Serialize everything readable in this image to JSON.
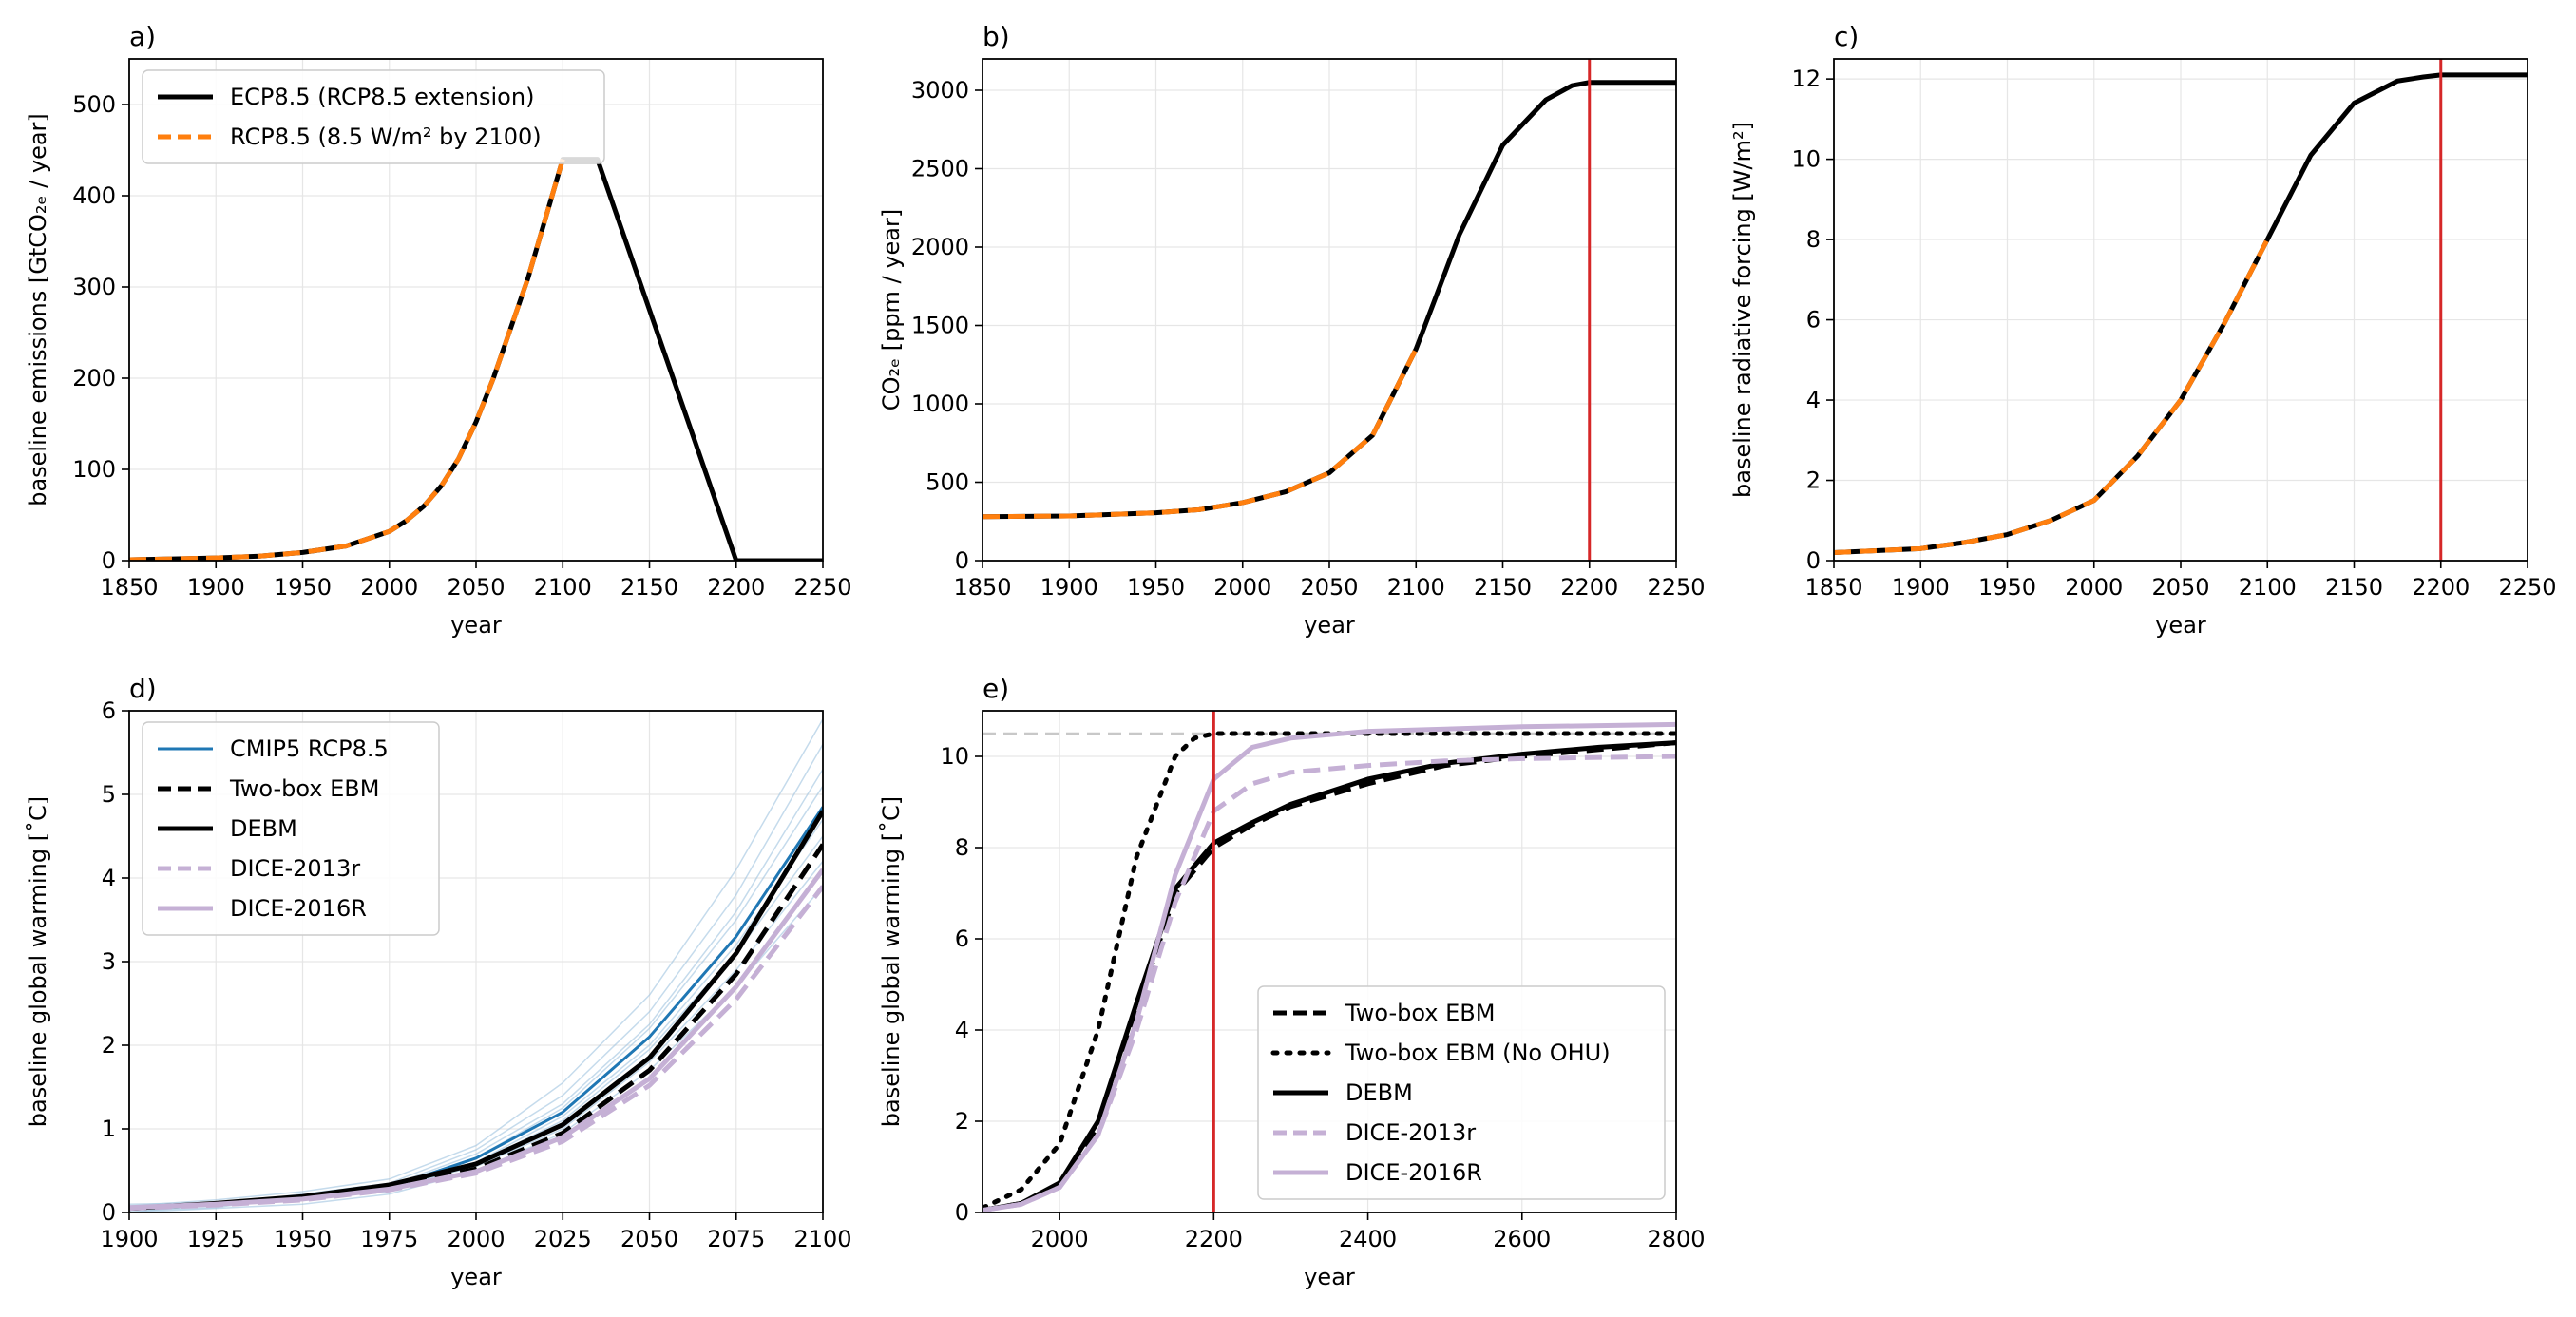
{
  "colors": {
    "black": "#000000",
    "orange": "#ff7f0e",
    "blue": "#1f77b4",
    "light_blue": "#9ec3df",
    "lilac": "#c5b0d5",
    "red": "#d62728",
    "gray": "#c8c8c8"
  },
  "chart_data": [
    {
      "id": "a",
      "type": "line",
      "title": "a)",
      "xlabel": "year",
      "ylabel": "baseline emissions [GtCO₂ₑ / year]",
      "xlim": [
        1850,
        2250
      ],
      "ylim": [
        0,
        550
      ],
      "xticks": [
        1850,
        1900,
        1950,
        2000,
        2050,
        2100,
        2150,
        2200,
        2250
      ],
      "yticks": [
        0,
        100,
        200,
        300,
        400,
        500
      ],
      "grid": true,
      "legend": "upper-left",
      "series": [
        {
          "name": "ECP8.5 (RCP8.5 extension)",
          "style": "solid",
          "color": "#000000",
          "width": 5,
          "x": [
            1850,
            1875,
            1900,
            1925,
            1950,
            1975,
            2000,
            2010,
            2020,
            2030,
            2040,
            2050,
            2060,
            2070,
            2080,
            2090,
            2100,
            2120,
            2200,
            2250
          ],
          "y": [
            1,
            2,
            3,
            5,
            9,
            16,
            32,
            44,
            60,
            82,
            112,
            152,
            200,
            255,
            310,
            375,
            440,
            440,
            0,
            0
          ]
        },
        {
          "name": "RCP8.5 (8.5 W/m² by 2100)",
          "style": "dashed",
          "color": "#ff7f0e",
          "width": 5,
          "x": [
            1850,
            1875,
            1900,
            1925,
            1950,
            1975,
            2000,
            2010,
            2020,
            2030,
            2040,
            2050,
            2060,
            2070,
            2080,
            2090,
            2100
          ],
          "y": [
            1,
            2,
            3,
            5,
            9,
            16,
            32,
            44,
            60,
            82,
            112,
            152,
            200,
            255,
            310,
            375,
            440
          ]
        }
      ]
    },
    {
      "id": "b",
      "type": "line",
      "title": "b)",
      "xlabel": "year",
      "ylabel": "CO₂ₑ [ppm / year]",
      "xlim": [
        1850,
        2250
      ],
      "ylim": [
        0,
        3200
      ],
      "xticks": [
        1850,
        1900,
        1950,
        2000,
        2050,
        2100,
        2150,
        2200,
        2250
      ],
      "yticks": [
        0,
        500,
        1000,
        1500,
        2000,
        2500,
        3000
      ],
      "grid": true,
      "vline": {
        "x": 2200,
        "color": "#d62728"
      },
      "series": [
        {
          "name": "ECP8.5",
          "style": "solid",
          "color": "#000000",
          "width": 5,
          "x": [
            1850,
            1900,
            1950,
            1975,
            2000,
            2025,
            2050,
            2075,
            2100,
            2110,
            2125,
            2150,
            2175,
            2190,
            2200,
            2250
          ],
          "y": [
            280,
            285,
            305,
            325,
            370,
            440,
            560,
            800,
            1350,
            1640,
            2080,
            2650,
            2940,
            3030,
            3050,
            3050
          ]
        },
        {
          "name": "RCP8.5",
          "style": "dashed",
          "color": "#ff7f0e",
          "width": 5,
          "x": [
            1850,
            1900,
            1950,
            1975,
            2000,
            2025,
            2050,
            2075,
            2100
          ],
          "y": [
            280,
            285,
            305,
            325,
            370,
            440,
            560,
            800,
            1350
          ]
        }
      ]
    },
    {
      "id": "c",
      "type": "line",
      "title": "c)",
      "xlabel": "year",
      "ylabel": "baseline radiative forcing [W/m²]",
      "xlim": [
        1850,
        2250
      ],
      "ylim": [
        0,
        12.5
      ],
      "xticks": [
        1850,
        1900,
        1950,
        2000,
        2050,
        2100,
        2150,
        2200,
        2250
      ],
      "yticks": [
        0,
        2,
        4,
        6,
        8,
        10,
        12
      ],
      "grid": true,
      "vline": {
        "x": 2200,
        "color": "#d62728"
      },
      "series": [
        {
          "name": "ECP8.5",
          "style": "solid",
          "color": "#000000",
          "width": 5,
          "x": [
            1850,
            1900,
            1925,
            1950,
            1975,
            2000,
            2025,
            2050,
            2075,
            2100,
            2125,
            2150,
            2175,
            2190,
            2200,
            2250
          ],
          "y": [
            0.2,
            0.3,
            0.45,
            0.65,
            1.0,
            1.5,
            2.6,
            4.0,
            5.9,
            8.0,
            10.1,
            11.4,
            11.95,
            12.05,
            12.1,
            12.1
          ]
        },
        {
          "name": "RCP8.5",
          "style": "dashed",
          "color": "#ff7f0e",
          "width": 5,
          "x": [
            1850,
            1900,
            1925,
            1950,
            1975,
            2000,
            2025,
            2050,
            2075,
            2100
          ],
          "y": [
            0.2,
            0.3,
            0.45,
            0.65,
            1.0,
            1.5,
            2.6,
            4.0,
            5.9,
            8.0
          ]
        }
      ]
    },
    {
      "id": "d",
      "type": "line",
      "title": "d)",
      "xlabel": "year",
      "ylabel": "baseline global warming [˚C]",
      "xlim": [
        1900,
        2100
      ],
      "ylim": [
        0,
        6
      ],
      "xticks": [
        1900,
        1925,
        1950,
        1975,
        2000,
        2025,
        2050,
        2075,
        2100
      ],
      "yticks": [
        0,
        1,
        2,
        3,
        4,
        5,
        6
      ],
      "grid": true,
      "legend": "upper-left",
      "ensemble": {
        "color": "#9ec3df",
        "x": [
          1900,
          1925,
          1950,
          1975,
          2000,
          2025,
          2050,
          2075,
          2100
        ],
        "members": [
          [
            0.05,
            0.08,
            0.18,
            0.28,
            0.6,
            1.15,
            2.0,
            3.2,
            4.7
          ],
          [
            0.0,
            0.1,
            0.22,
            0.35,
            0.75,
            1.4,
            2.4,
            3.8,
            5.6
          ],
          [
            0.1,
            0.12,
            0.15,
            0.3,
            0.55,
            1.0,
            1.8,
            2.9,
            4.2
          ],
          [
            0.02,
            0.06,
            0.2,
            0.25,
            0.65,
            1.25,
            2.2,
            3.5,
            5.1
          ],
          [
            0.08,
            0.15,
            0.25,
            0.4,
            0.8,
            1.55,
            2.6,
            4.1,
            5.9
          ],
          [
            0.0,
            0.05,
            0.1,
            0.22,
            0.5,
            0.95,
            1.7,
            2.7,
            3.9
          ],
          [
            0.06,
            0.11,
            0.19,
            0.32,
            0.7,
            1.3,
            2.25,
            3.6,
            5.3
          ],
          [
            0.03,
            0.09,
            0.17,
            0.27,
            0.58,
            1.1,
            1.95,
            3.1,
            4.5
          ]
        ]
      },
      "series": [
        {
          "name": "CMIP5 RCP8.5",
          "style": "solid",
          "color": "#1f77b4",
          "width": 3,
          "x": [
            1900,
            1925,
            1950,
            1975,
            2000,
            2025,
            2050,
            2075,
            2100
          ],
          "y": [
            0.05,
            0.1,
            0.18,
            0.3,
            0.65,
            1.2,
            2.1,
            3.3,
            4.85
          ]
        },
        {
          "name": "Two-box EBM",
          "style": "dashed",
          "color": "#000000",
          "width": 5,
          "x": [
            1900,
            1925,
            1950,
            1975,
            2000,
            2025,
            2050,
            2075,
            2100
          ],
          "y": [
            0.05,
            0.1,
            0.17,
            0.3,
            0.52,
            0.95,
            1.7,
            2.85,
            4.4
          ]
        },
        {
          "name": "DEBM",
          "style": "solid",
          "color": "#000000",
          "width": 5,
          "x": [
            1900,
            1925,
            1950,
            1975,
            2000,
            2025,
            2050,
            2075,
            2100
          ],
          "y": [
            0.05,
            0.11,
            0.19,
            0.33,
            0.58,
            1.05,
            1.85,
            3.1,
            4.8
          ]
        },
        {
          "name": "DICE-2013r",
          "style": "dashed",
          "color": "#c5b0d5",
          "width": 5,
          "x": [
            1900,
            1925,
            1950,
            1975,
            2000,
            2025,
            2050,
            2075,
            2100
          ],
          "y": [
            0.05,
            0.09,
            0.15,
            0.27,
            0.47,
            0.85,
            1.52,
            2.55,
            3.9
          ]
        },
        {
          "name": "DICE-2016R",
          "style": "solid",
          "color": "#c5b0d5",
          "width": 5,
          "x": [
            1900,
            1925,
            1950,
            1975,
            2000,
            2025,
            2050,
            2075,
            2100
          ],
          "y": [
            0.06,
            0.1,
            0.16,
            0.28,
            0.49,
            0.9,
            1.6,
            2.7,
            4.1
          ]
        }
      ]
    },
    {
      "id": "e",
      "type": "line",
      "title": "e)",
      "xlabel": "year",
      "ylabel": "baseline global warming [˚C]",
      "xlim": [
        1900,
        2800
      ],
      "ylim": [
        0,
        11
      ],
      "xticks": [
        2000,
        2200,
        2400,
        2600,
        2800
      ],
      "yticks": [
        0,
        2,
        4,
        6,
        8,
        10
      ],
      "grid": true,
      "legend": "lower-right",
      "vline": {
        "x": 2200,
        "color": "#d62728"
      },
      "hline": {
        "y": 10.5,
        "color": "#c8c8c8"
      },
      "series": [
        {
          "name": "Two-box EBM",
          "style": "dashed",
          "color": "#000000",
          "width": 5,
          "x": [
            1900,
            1950,
            2000,
            2050,
            2100,
            2150,
            2200,
            2250,
            2300,
            2400,
            2500,
            2600,
            2700,
            2800
          ],
          "y": [
            0.05,
            0.2,
            0.6,
            1.9,
            4.4,
            7.0,
            8.0,
            8.5,
            8.9,
            9.4,
            9.8,
            10.0,
            10.15,
            10.3
          ]
        },
        {
          "name": "Two-box EBM (No OHU)",
          "style": "dotted",
          "color": "#000000",
          "width": 5,
          "x": [
            1900,
            1950,
            2000,
            2050,
            2100,
            2150,
            2175,
            2200,
            2250,
            2300,
            2400,
            2600,
            2800
          ],
          "y": [
            0.1,
            0.5,
            1.5,
            4.0,
            7.8,
            10.0,
            10.4,
            10.5,
            10.5,
            10.5,
            10.5,
            10.5,
            10.5
          ]
        },
        {
          "name": "DEBM",
          "style": "solid",
          "color": "#000000",
          "width": 5,
          "x": [
            1900,
            1950,
            2000,
            2050,
            2100,
            2150,
            2200,
            2250,
            2300,
            2400,
            2500,
            2600,
            2700,
            2800
          ],
          "y": [
            0.05,
            0.2,
            0.65,
            2.0,
            4.6,
            7.1,
            8.1,
            8.55,
            8.95,
            9.5,
            9.85,
            10.05,
            10.2,
            10.3
          ]
        },
        {
          "name": "DICE-2013r",
          "style": "dashed",
          "color": "#c5b0d5",
          "width": 5,
          "x": [
            1900,
            1950,
            2000,
            2050,
            2100,
            2150,
            2200,
            2250,
            2300,
            2400,
            2500,
            2600,
            2800
          ],
          "y": [
            0.05,
            0.18,
            0.55,
            1.7,
            4.0,
            6.8,
            8.8,
            9.4,
            9.65,
            9.8,
            9.9,
            9.95,
            10.0
          ]
        },
        {
          "name": "DICE-2016R",
          "style": "solid",
          "color": "#c5b0d5",
          "width": 5,
          "x": [
            1900,
            1950,
            2000,
            2050,
            2100,
            2150,
            2200,
            2250,
            2300,
            2400,
            2500,
            2600,
            2800
          ],
          "y": [
            0.05,
            0.18,
            0.55,
            1.7,
            4.2,
            7.4,
            9.5,
            10.2,
            10.4,
            10.55,
            10.6,
            10.65,
            10.7
          ]
        }
      ]
    }
  ]
}
